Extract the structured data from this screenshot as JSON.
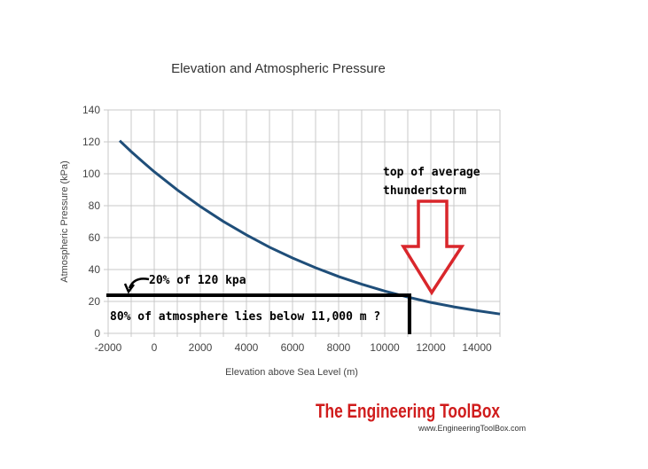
{
  "chart_data": {
    "type": "line",
    "title": "Elevation and Atmospheric Pressure",
    "xlabel": "Elevation above Sea Level (m)",
    "ylabel": "Atmospheric Pressure (kPa)",
    "xlim": [
      -2000,
      15000
    ],
    "ylim": [
      0,
      140
    ],
    "xticks": [
      -2000,
      0,
      2000,
      4000,
      6000,
      8000,
      10000,
      12000,
      14000
    ],
    "yticks": [
      0,
      20,
      40,
      60,
      80,
      100,
      120,
      140
    ],
    "grid": true,
    "series": [
      {
        "name": "Atmospheric Pressure",
        "color": "#1f4e79",
        "x": [
          -1500,
          -1000,
          -500,
          0,
          1000,
          2000,
          3000,
          4000,
          5000,
          6000,
          7000,
          8000,
          9000,
          10000,
          11000,
          12000,
          13000,
          14000,
          15000
        ],
        "y": [
          120.7,
          113.9,
          107.5,
          101.3,
          89.9,
          79.5,
          70.1,
          61.7,
          54.0,
          47.2,
          41.1,
          35.6,
          30.8,
          26.5,
          22.7,
          19.4,
          16.6,
          14.2,
          12.1
        ]
      }
    ],
    "annotations": {
      "threshold_line": {
        "x_end": 11000,
        "y": 24,
        "color": "#000000"
      },
      "arrow_label": "20% of 120 kpa",
      "below_label": "80% of atmosphere lies below 11,000 m ?",
      "storm_label_1": "top of average",
      "storm_label_2": "thunderstorm",
      "storm_arrow_x": 12000,
      "storm_arrow_color": "#d9262b"
    }
  },
  "branding": {
    "logo": "The Engineering ToolBox",
    "url": "www.EngineeringToolBox.com"
  }
}
